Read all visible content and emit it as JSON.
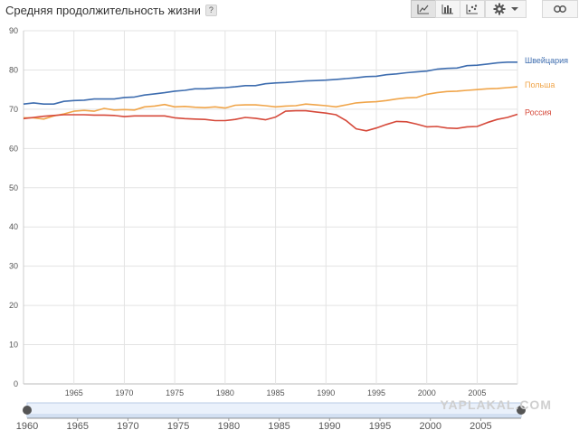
{
  "header": {
    "title": "Средняя продолжительность жизни",
    "help_label": "?"
  },
  "toolbar": {
    "chart_types": [
      {
        "icon": "line-chart-icon",
        "active": true
      },
      {
        "icon": "bar-chart-icon",
        "active": false
      },
      {
        "icon": "scatter-chart-icon",
        "active": false
      }
    ],
    "settings_icon": "gear-icon",
    "dropdown_icon": "chevron-down-icon",
    "link_icon": "link-icon"
  },
  "watermark": "YAPLAKAL.COM",
  "chart_data": {
    "type": "line",
    "title": "Средняя продолжительность жизни",
    "xlim": [
      1960,
      2009
    ],
    "ylim": [
      0,
      90
    ],
    "y_ticks": [
      0,
      10,
      20,
      30,
      40,
      50,
      60,
      70,
      80,
      90
    ],
    "x_ticks": [
      1965,
      1970,
      1975,
      1980,
      1985,
      1990,
      1995,
      2000,
      2005
    ],
    "grid": true,
    "legend": "right-end-labels",
    "x": [
      1960,
      1961,
      1962,
      1963,
      1964,
      1965,
      1966,
      1967,
      1968,
      1969,
      1970,
      1971,
      1972,
      1973,
      1974,
      1975,
      1976,
      1977,
      1978,
      1979,
      1980,
      1981,
      1982,
      1983,
      1984,
      1985,
      1986,
      1987,
      1988,
      1989,
      1990,
      1991,
      1992,
      1993,
      1994,
      1995,
      1996,
      1997,
      1998,
      1999,
      2000,
      2001,
      2002,
      2003,
      2004,
      2005,
      2006,
      2007,
      2008,
      2009
    ],
    "series": [
      {
        "name": "Швейцария",
        "color": "#3e6daf",
        "values": [
          71.3,
          71.6,
          71.3,
          71.3,
          72.0,
          72.2,
          72.3,
          72.6,
          72.6,
          72.6,
          73.0,
          73.1,
          73.6,
          73.9,
          74.2,
          74.6,
          74.8,
          75.2,
          75.2,
          75.4,
          75.5,
          75.7,
          76.0,
          76.0,
          76.5,
          76.7,
          76.8,
          77.0,
          77.2,
          77.3,
          77.4,
          77.6,
          77.8,
          78.0,
          78.3,
          78.4,
          78.8,
          79.0,
          79.3,
          79.5,
          79.7,
          80.2,
          80.4,
          80.5,
          81.1,
          81.2,
          81.5,
          81.8,
          82.0,
          82.0
        ]
      },
      {
        "name": "Польша",
        "color": "#f0a54a",
        "values": [
          67.8,
          67.8,
          67.5,
          68.3,
          68.8,
          69.5,
          69.7,
          69.5,
          70.2,
          69.8,
          69.9,
          69.8,
          70.6,
          70.8,
          71.2,
          70.6,
          70.7,
          70.5,
          70.4,
          70.6,
          70.3,
          71.0,
          71.1,
          71.1,
          70.9,
          70.6,
          70.8,
          70.9,
          71.3,
          71.1,
          70.9,
          70.6,
          71.1,
          71.6,
          71.8,
          71.9,
          72.2,
          72.6,
          72.9,
          73.0,
          73.8,
          74.2,
          74.5,
          74.6,
          74.8,
          75.0,
          75.2,
          75.3,
          75.5,
          75.7
        ]
      },
      {
        "name": "Россия",
        "color": "#d64a3b",
        "values": [
          67.6,
          67.9,
          68.2,
          68.4,
          68.6,
          68.6,
          68.6,
          68.5,
          68.5,
          68.4,
          68.1,
          68.3,
          68.3,
          68.3,
          68.3,
          67.8,
          67.6,
          67.5,
          67.4,
          67.1,
          67.1,
          67.4,
          67.9,
          67.7,
          67.3,
          68.0,
          69.5,
          69.6,
          69.6,
          69.3,
          69.0,
          68.6,
          67.1,
          65.0,
          64.5,
          65.2,
          66.1,
          66.9,
          66.8,
          66.2,
          65.5,
          65.6,
          65.2,
          65.1,
          65.5,
          65.6,
          66.6,
          67.4,
          67.9,
          68.7
        ]
      }
    ],
    "range_selector": {
      "start_label": "1960",
      "ticks": [
        1965,
        1970,
        1975,
        1980,
        1985,
        1990,
        1995,
        2000,
        2005
      ]
    }
  }
}
